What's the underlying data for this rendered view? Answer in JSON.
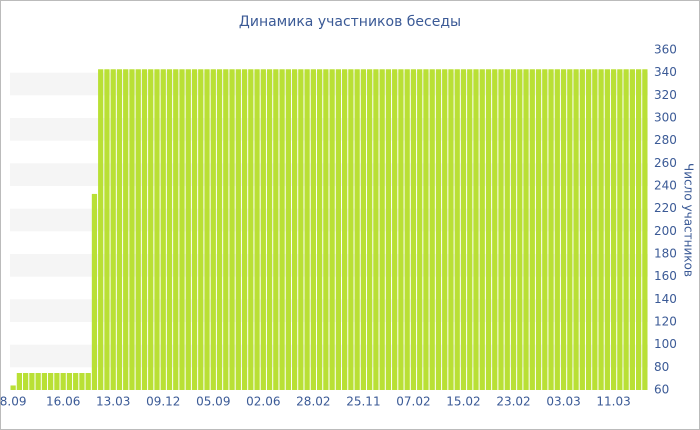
{
  "chart_data": {
    "type": "bar",
    "title": "Динамика участников беседы",
    "y_label": "Число участников",
    "categories": [
      "8.09",
      null,
      null,
      null,
      null,
      null,
      null,
      null,
      "16.06",
      null,
      null,
      null,
      null,
      null,
      null,
      null,
      "13.03",
      null,
      null,
      null,
      null,
      null,
      null,
      null,
      "09.12",
      null,
      null,
      null,
      null,
      null,
      null,
      null,
      "05.09",
      null,
      null,
      null,
      null,
      null,
      null,
      null,
      "02.06",
      null,
      null,
      null,
      null,
      null,
      null,
      null,
      "28.02",
      null,
      null,
      null,
      null,
      null,
      null,
      null,
      "25.11",
      null,
      null,
      null,
      null,
      null,
      null,
      null,
      "07.02",
      null,
      null,
      null,
      null,
      null,
      null,
      null,
      "15.02",
      null,
      null,
      null,
      null,
      null,
      null,
      null,
      "23.02",
      null,
      null,
      null,
      null,
      null,
      null,
      null,
      "03.03",
      null,
      null,
      null,
      null,
      null,
      null,
      null,
      "11.03",
      null,
      null,
      null,
      null,
      null
    ],
    "values": [
      64,
      75,
      75,
      75,
      75,
      75,
      75,
      75,
      75,
      75,
      75,
      75,
      75,
      233,
      343,
      343,
      343,
      343,
      343,
      343,
      343,
      343,
      343,
      343,
      343,
      343,
      343,
      343,
      343,
      343,
      343,
      343,
      343,
      343,
      343,
      343,
      343,
      343,
      343,
      343,
      343,
      343,
      343,
      343,
      343,
      343,
      343,
      343,
      343,
      343,
      343,
      343,
      343,
      343,
      343,
      343,
      343,
      343,
      343,
      343,
      343,
      343,
      343,
      343,
      343,
      343,
      343,
      343,
      343,
      343,
      343,
      343,
      343,
      343,
      343,
      343,
      343,
      343,
      343,
      343,
      343,
      343,
      343,
      343,
      343,
      343,
      343,
      343,
      343,
      343,
      343,
      343,
      343,
      343,
      343,
      343,
      343,
      343,
      343,
      343,
      343,
      343
    ],
    "color": "#b9e035",
    "ylim": [
      60,
      360
    ],
    "yticks": [
      60,
      80,
      100,
      120,
      140,
      160,
      180,
      200,
      220,
      240,
      260,
      280,
      300,
      320,
      340,
      360
    ],
    "grid": true
  }
}
